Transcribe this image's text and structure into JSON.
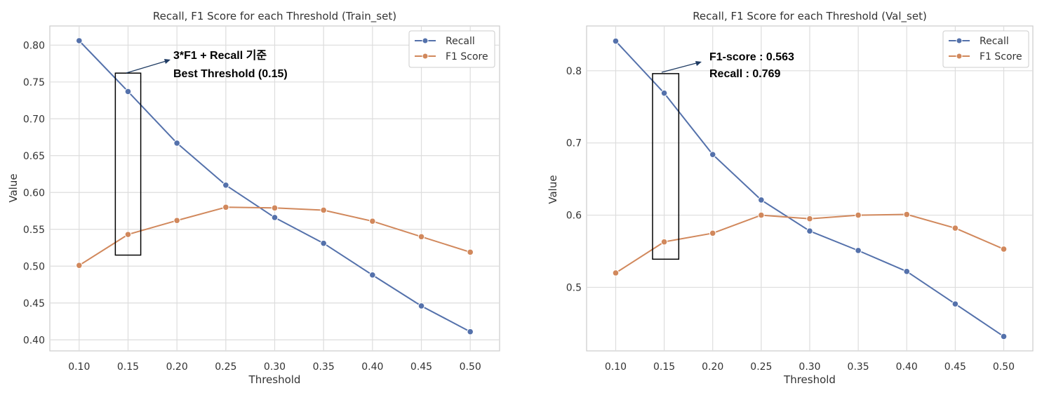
{
  "colors": {
    "recall": "#5471ab",
    "f1": "#d1885c"
  },
  "chart_data": [
    {
      "type": "line",
      "title": "Recall, F1 Score for each Threshold (Train_set)",
      "xlabel": "Threshold",
      "ylabel": "Value",
      "x": [
        0.1,
        0.15,
        0.2,
        0.25,
        0.3,
        0.35,
        0.4,
        0.45,
        0.5
      ],
      "x_ticks": [
        "0.10",
        "0.15",
        "0.20",
        "0.25",
        "0.30",
        "0.35",
        "0.40",
        "0.45",
        "0.50"
      ],
      "xlim": [
        0.07,
        0.53
      ],
      "ylim": [
        0.385,
        0.826
      ],
      "y_ticks": [
        "0.40",
        "0.45",
        "0.50",
        "0.55",
        "0.60",
        "0.65",
        "0.70",
        "0.75",
        "0.80"
      ],
      "y_tick_values": [
        0.4,
        0.45,
        0.5,
        0.55,
        0.6,
        0.65,
        0.7,
        0.75,
        0.8
      ],
      "grid": true,
      "legend_position": "top-right",
      "series": [
        {
          "name": "Recall",
          "values": [
            0.806,
            0.737,
            0.667,
            0.61,
            0.566,
            0.531,
            0.488,
            0.446,
            0.411
          ]
        },
        {
          "name": "F1 Score",
          "values": [
            0.501,
            0.543,
            0.562,
            0.58,
            0.579,
            0.576,
            0.561,
            0.54,
            0.519
          ]
        }
      ],
      "highlight": {
        "x_range": [
          0.137,
          0.163
        ],
        "y_range": [
          0.515,
          0.762
        ]
      },
      "annotation": {
        "lines": [
          "3*F1 + Recall 기준",
          "Best Threshold (0.15)"
        ]
      }
    },
    {
      "type": "line",
      "title": "Recall, F1 Score for each Threshold (Val_set)",
      "xlabel": "Threshold",
      "ylabel": "Value",
      "x": [
        0.1,
        0.15,
        0.2,
        0.25,
        0.3,
        0.35,
        0.4,
        0.45,
        0.5
      ],
      "x_ticks": [
        "0.10",
        "0.15",
        "0.20",
        "0.25",
        "0.30",
        "0.35",
        "0.40",
        "0.45",
        "0.50"
      ],
      "xlim": [
        0.07,
        0.53
      ],
      "ylim": [
        0.412,
        0.862
      ],
      "y_ticks": [
        "0.5",
        "0.6",
        "0.7",
        "0.8"
      ],
      "y_tick_values": [
        0.5,
        0.6,
        0.7,
        0.8
      ],
      "grid": true,
      "legend_position": "top-right",
      "series": [
        {
          "name": "Recall",
          "values": [
            0.841,
            0.769,
            0.684,
            0.621,
            0.578,
            0.551,
            0.522,
            0.477,
            0.432
          ]
        },
        {
          "name": "F1 Score",
          "values": [
            0.52,
            0.563,
            0.575,
            0.6,
            0.595,
            0.6,
            0.601,
            0.582,
            0.553
          ]
        }
      ],
      "highlight": {
        "x_range": [
          0.138,
          0.165
        ],
        "y_range": [
          0.539,
          0.796
        ]
      },
      "annotation": {
        "lines": [
          "F1-score : 0.563",
          "Recall : 0.769"
        ]
      }
    }
  ]
}
